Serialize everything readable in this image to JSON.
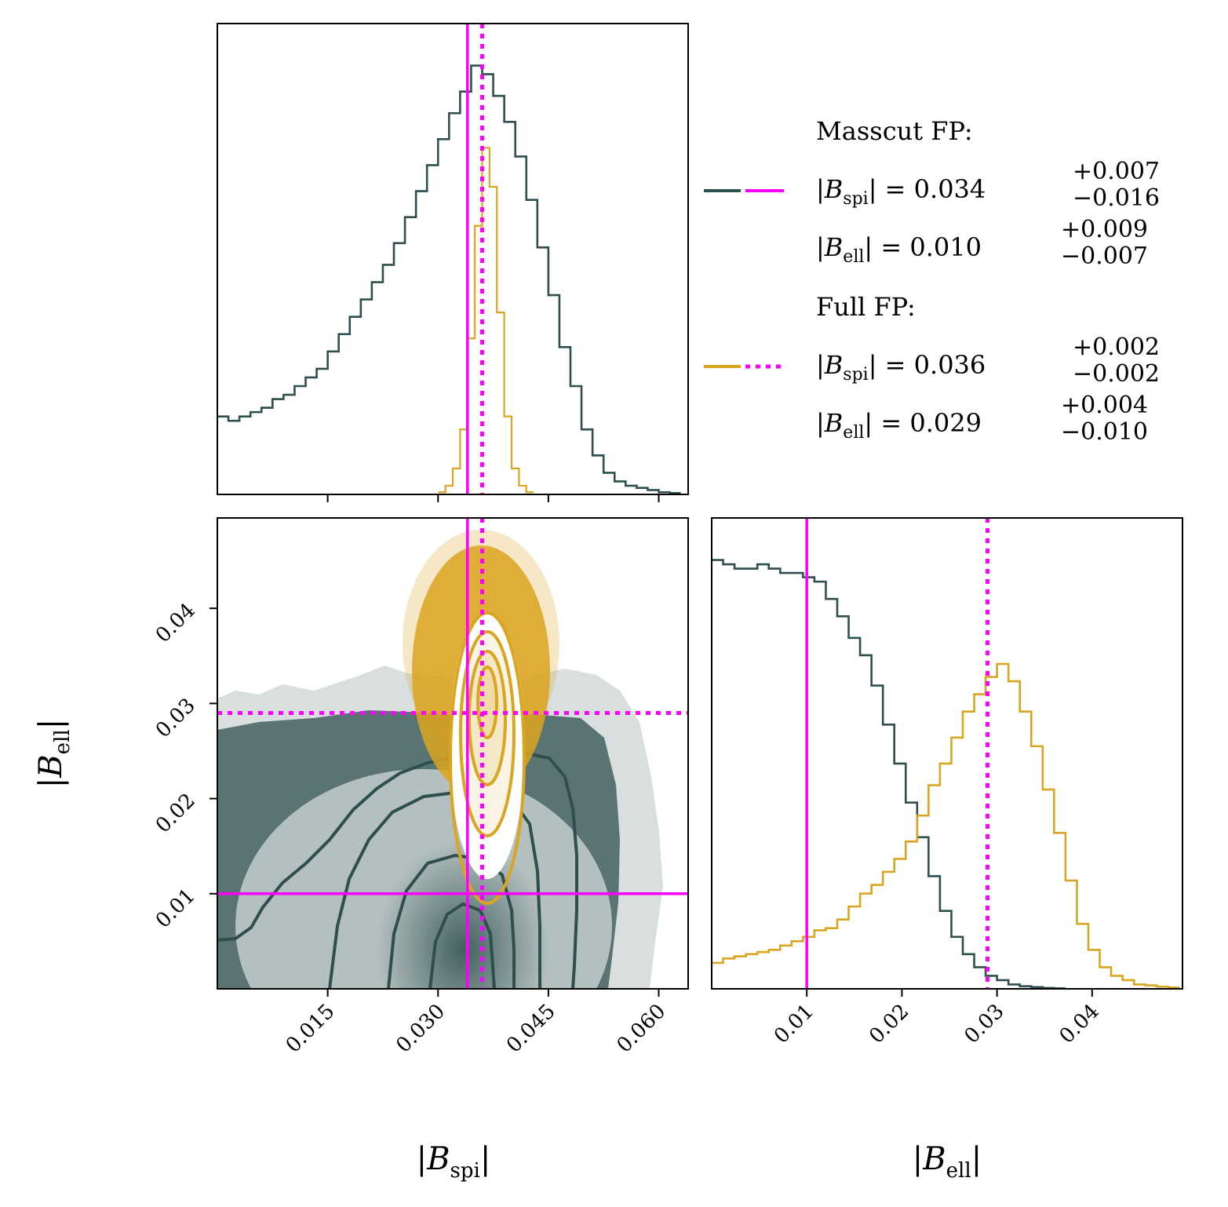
{
  "colors": {
    "masscut": "#2f4f4f",
    "full": "#daa520",
    "truth": "#ff00ff"
  },
  "chart_data": [
    {
      "name": "spi-marginal",
      "type": "histogram",
      "xlim": [
        0.0,
        0.064
      ],
      "truth_masscut": 0.034,
      "truth_full": 0.036,
      "series": [
        {
          "name": "Masscut FP",
          "color": "#2f4f4f",
          "x": [
            0.0,
            0.0015,
            0.003,
            0.0045,
            0.006,
            0.0075,
            0.009,
            0.0105,
            0.012,
            0.0135,
            0.015,
            0.0165,
            0.018,
            0.0195,
            0.021,
            0.0225,
            0.024,
            0.0255,
            0.027,
            0.0285,
            0.03,
            0.0315,
            0.033,
            0.0345,
            0.036,
            0.0375,
            0.039,
            0.0405,
            0.042,
            0.0435,
            0.045,
            0.0465,
            0.048,
            0.0495,
            0.051,
            0.0525,
            0.054,
            0.0555,
            0.057,
            0.0585,
            0.06,
            0.0615
          ],
          "y": [
            0.18,
            0.17,
            0.18,
            0.19,
            0.2,
            0.22,
            0.23,
            0.25,
            0.27,
            0.29,
            0.33,
            0.37,
            0.41,
            0.45,
            0.49,
            0.53,
            0.58,
            0.64,
            0.7,
            0.76,
            0.82,
            0.88,
            0.93,
            0.99,
            0.97,
            0.92,
            0.86,
            0.78,
            0.68,
            0.57,
            0.46,
            0.34,
            0.25,
            0.15,
            0.09,
            0.05,
            0.03,
            0.02,
            0.015,
            0.01,
            0.005,
            0.003
          ]
        },
        {
          "name": "Full FP",
          "color": "#daa520",
          "x": [
            0.03,
            0.031,
            0.032,
            0.033,
            0.034,
            0.035,
            0.036,
            0.037,
            0.038,
            0.039,
            0.04,
            0.041,
            0.042
          ],
          "y": [
            0.005,
            0.02,
            0.06,
            0.15,
            0.36,
            0.62,
            0.8,
            0.71,
            0.42,
            0.18,
            0.06,
            0.02,
            0.005
          ]
        }
      ]
    },
    {
      "name": "joint-2d",
      "type": "scatter",
      "title": "",
      "xlabel": "|B_spi|",
      "ylabel": "|B_ell|",
      "xlim": [
        0.0,
        0.064
      ],
      "ylim": [
        0.0,
        0.0495
      ],
      "xticks": [
        "0.015",
        "0.030",
        "0.045",
        "0.060"
      ],
      "yticks": [
        "0.01",
        "0.02",
        "0.03",
        "0.04"
      ],
      "truth_masscut": {
        "x": 0.034,
        "y": 0.01
      },
      "truth_full": {
        "x": 0.036,
        "y": 0.029
      },
      "masscut_contour_levels": [
        0.5,
        1.0,
        1.5,
        2.0
      ],
      "full_contour_levels": [
        0.5,
        1.0,
        1.5,
        2.0
      ]
    },
    {
      "name": "ell-marginal",
      "type": "histogram",
      "xlim": [
        0.0,
        0.0495
      ],
      "xlabel": "|B_ell|",
      "xticks": [
        "0.01",
        "0.02",
        "0.03",
        "0.04"
      ],
      "truth_masscut": 0.01,
      "truth_full": 0.029,
      "series": [
        {
          "name": "Masscut FP",
          "color": "#2f4f4f",
          "x": [
            0.0,
            0.0012,
            0.0024,
            0.0036,
            0.0048,
            0.006,
            0.0072,
            0.0084,
            0.0096,
            0.0108,
            0.012,
            0.0132,
            0.0144,
            0.0156,
            0.0168,
            0.018,
            0.0192,
            0.0204,
            0.0216,
            0.0228,
            0.024,
            0.0252,
            0.0264,
            0.0276,
            0.0288,
            0.03,
            0.0312,
            0.0324,
            0.0336,
            0.0348,
            0.036
          ],
          "y": [
            0.99,
            0.98,
            0.97,
            0.97,
            0.98,
            0.97,
            0.96,
            0.96,
            0.95,
            0.94,
            0.9,
            0.86,
            0.81,
            0.77,
            0.7,
            0.61,
            0.52,
            0.43,
            0.35,
            0.26,
            0.18,
            0.12,
            0.08,
            0.05,
            0.03,
            0.02,
            0.01,
            0.006,
            0.004,
            0.002,
            0.001
          ]
        },
        {
          "name": "Full FP",
          "color": "#daa520",
          "x": [
            0.0,
            0.0012,
            0.0024,
            0.0036,
            0.0048,
            0.006,
            0.0072,
            0.0084,
            0.0096,
            0.0108,
            0.012,
            0.0132,
            0.0144,
            0.0156,
            0.0168,
            0.018,
            0.0192,
            0.0204,
            0.0216,
            0.0228,
            0.024,
            0.0252,
            0.0264,
            0.0276,
            0.0288,
            0.03,
            0.0312,
            0.0324,
            0.0336,
            0.0348,
            0.036,
            0.0372,
            0.0384,
            0.0396,
            0.0408,
            0.042,
            0.0432,
            0.0444,
            0.0456,
            0.0468,
            0.048
          ],
          "y": [
            0.06,
            0.07,
            0.075,
            0.08,
            0.085,
            0.09,
            0.1,
            0.11,
            0.12,
            0.135,
            0.14,
            0.16,
            0.19,
            0.22,
            0.24,
            0.27,
            0.3,
            0.34,
            0.4,
            0.47,
            0.52,
            0.58,
            0.64,
            0.68,
            0.72,
            0.75,
            0.71,
            0.64,
            0.56,
            0.46,
            0.36,
            0.25,
            0.15,
            0.09,
            0.05,
            0.03,
            0.02,
            0.01,
            0.008,
            0.005,
            0.003
          ]
        }
      ]
    }
  ],
  "legend": {
    "masscut_header": "Masscut FP:",
    "masscut_spi_lhs": "|B",
    "masscut_spi_sub": "spi",
    "masscut_spi_eq": "| = 0.034",
    "masscut_spi_up": "+0.007",
    "masscut_spi_dn": "−0.016",
    "masscut_ell_lhs": "|B",
    "masscut_ell_sub": "ell",
    "masscut_ell_eq": "| = 0.010",
    "masscut_ell_up": "+0.009",
    "masscut_ell_dn": "−0.007",
    "full_header": "Full FP:",
    "full_spi_lhs": "|B",
    "full_spi_sub": "spi",
    "full_spi_eq": "| = 0.036",
    "full_spi_up": "+0.002",
    "full_spi_dn": "−0.002",
    "full_ell_lhs": "|B",
    "full_ell_sub": "ell",
    "full_ell_eq": "| = 0.029",
    "full_ell_up": "+0.004",
    "full_ell_dn": "−0.010"
  },
  "axis_labels": {
    "x_left_main": "|B",
    "x_left_sub": "spi",
    "x_left_close": "|",
    "x_right_main": "|B",
    "x_right_sub": "ell",
    "x_right_close": "|",
    "y_main": "|B",
    "y_sub": "ell",
    "y_close": "|"
  }
}
